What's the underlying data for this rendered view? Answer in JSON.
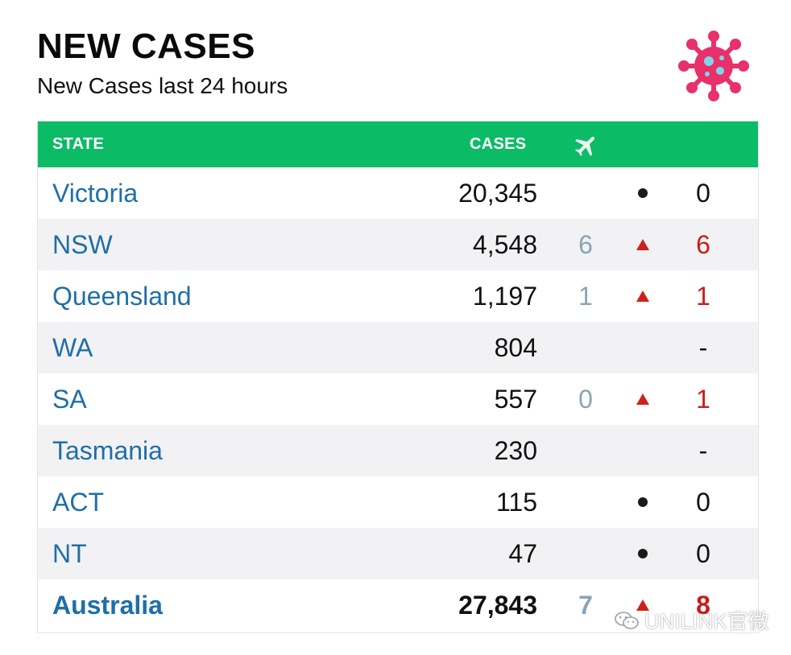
{
  "header": {
    "title": "NEW CASES",
    "subtitle": "New Cases last 24 hours"
  },
  "table": {
    "columns": {
      "state": "STATE",
      "cases": "CASES",
      "imported_icon": "plane-icon"
    },
    "rows": [
      {
        "state": "Victoria",
        "cases": "20,345",
        "imported": "",
        "trend": "dot",
        "change": "0"
      },
      {
        "state": "NSW",
        "cases": "4,548",
        "imported": "6",
        "trend": "up",
        "change": "6"
      },
      {
        "state": "Queensland",
        "cases": "1,197",
        "imported": "1",
        "trend": "up",
        "change": "1"
      },
      {
        "state": "WA",
        "cases": "804",
        "imported": "",
        "trend": "",
        "change": "-"
      },
      {
        "state": "SA",
        "cases": "557",
        "imported": "0",
        "trend": "up",
        "change": "1"
      },
      {
        "state": "Tasmania",
        "cases": "230",
        "imported": "",
        "trend": "",
        "change": "-"
      },
      {
        "state": "ACT",
        "cases": "115",
        "imported": "",
        "trend": "dot",
        "change": "0"
      },
      {
        "state": "NT",
        "cases": "47",
        "imported": "",
        "trend": "dot",
        "change": "0"
      }
    ],
    "total": {
      "state": "Australia",
      "cases": "27,843",
      "imported": "7",
      "trend": "up",
      "change": "8"
    }
  },
  "watermark": {
    "text": "UNILINK官微",
    "icon": "wechat-icon"
  },
  "colors": {
    "header_green": "#0cbb66",
    "link_blue": "#1f6fa7",
    "increase_red": "#cc1a1a",
    "imported_gray": "#8aa4b6",
    "virus_pink": "#e8306a"
  }
}
